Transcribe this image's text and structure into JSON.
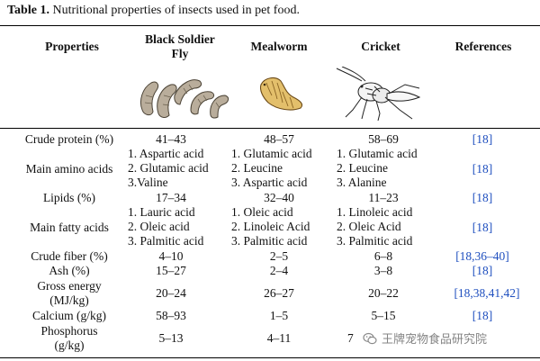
{
  "caption": {
    "label": "Table 1.",
    "text": " Nutritional properties of insects used in pet food."
  },
  "headers": {
    "properties": "Properties",
    "bsf_line1": "Black Soldier",
    "bsf_line2": "Fly",
    "mealworm": "Mealworm",
    "cricket": "Cricket",
    "references": "References"
  },
  "rows": {
    "crude_protein": {
      "label": "Crude protein (%)",
      "bsf": "41–43",
      "mealworm": "48–57",
      "cricket": "58–69",
      "ref": "[18]"
    },
    "amino_acids": {
      "label": "Main amino acids",
      "bsf": [
        "1. Aspartic acid",
        "2. Glutamic acid",
        "3.Valine"
      ],
      "mealworm": [
        "1. Glutamic acid",
        "2. Leucine",
        "3. Aspartic acid"
      ],
      "cricket": [
        "1. Glutamic acid",
        "2. Leucine",
        "3. Alanine"
      ],
      "ref": "[18]"
    },
    "lipids": {
      "label": "Lipids (%)",
      "bsf": "17–34",
      "mealworm": "32–40",
      "cricket": "11–23",
      "ref": "[18]"
    },
    "fatty_acids": {
      "label": "Main fatty acids",
      "bsf": [
        "1. Lauric acid",
        "2. Oleic acid",
        "3. Palmitic acid"
      ],
      "mealworm": [
        "1. Oleic acid",
        "2. Linoleic Acid",
        "3. Palmitic acid"
      ],
      "cricket": [
        "1. Linoleic acid",
        "2. Oleic Acid",
        "3. Palmitic acid"
      ],
      "ref": "[18]"
    },
    "crude_fiber": {
      "label": "Crude fiber (%)",
      "bsf": "4–10",
      "mealworm": "2–5",
      "cricket": "6–8",
      "ref": "[18,36–40]"
    },
    "ash": {
      "label": "Ash (%)",
      "bsf": "15–27",
      "mealworm": "2–4",
      "cricket": "3–8",
      "ref": "[18]"
    },
    "gross_energy": {
      "label_line1": "Gross energy",
      "label_line2": "(MJ/kg)",
      "bsf": "20–24",
      "mealworm": "26–27",
      "cricket": "20–22",
      "ref": "[18,38,41,42]"
    },
    "calcium": {
      "label": "Calcium (g/kg)",
      "bsf": "58–93",
      "mealworm": "1–5",
      "cricket": "5–15",
      "ref": "[18]"
    },
    "phosphorus": {
      "label_line1": "Phosphorus",
      "label_line2": "(g/kg)",
      "bsf": "5–13",
      "mealworm": "4–11",
      "cricket": "7",
      "ref": ""
    }
  },
  "watermark": "王牌宠物食品研究院",
  "colors": {
    "reference_link": "#1f4fbf",
    "rule": "#000000"
  }
}
